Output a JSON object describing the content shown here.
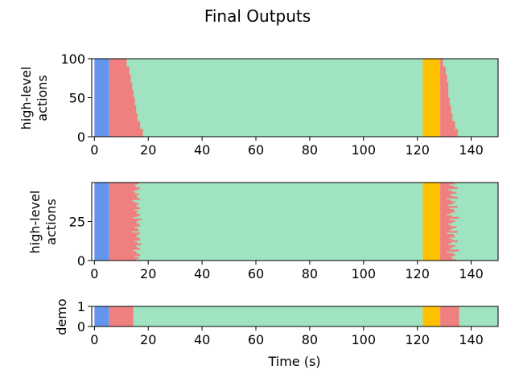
{
  "figure": {
    "title": "Final Outputs"
  },
  "colors": {
    "phase_a": "#6495ED",
    "phase_b": "#F08080",
    "phase_c": "#A0E3C1",
    "phase_d": "#FFC000"
  },
  "chart_data": [
    {
      "type": "heatmap",
      "ylabel_lines": [
        "high-level",
        "actions"
      ],
      "xlim": [
        -1,
        150
      ],
      "ylim": [
        0,
        100
      ],
      "xticks": [
        0,
        20,
        40,
        60,
        80,
        100,
        120,
        140
      ],
      "yticks": [
        0,
        50,
        100
      ],
      "segments": [
        {
          "phase": "phase_a",
          "x0": 0,
          "x1": 5.5
        },
        {
          "phase": "phase_c",
          "x0": 5.5,
          "x1": 122
        },
        {
          "phase": "phase_d",
          "x0": 122,
          "x1": 128.5
        },
        {
          "phase": "phase_c",
          "x0": 128.5,
          "x1": 150
        }
      ],
      "rows": [
        {
          "phase": "phase_b",
          "y0": 90,
          "y1": 100,
          "x0": 5.5,
          "x1": 12
        },
        {
          "phase": "phase_b",
          "y0": 80,
          "y1": 90,
          "x0": 5.5,
          "x1": 13
        },
        {
          "phase": "phase_b",
          "y0": 70,
          "y1": 80,
          "x0": 5.5,
          "x1": 13.5
        },
        {
          "phase": "phase_b",
          "y0": 60,
          "y1": 70,
          "x0": 5.5,
          "x1": 14
        },
        {
          "phase": "phase_b",
          "y0": 50,
          "y1": 60,
          "x0": 5.5,
          "x1": 14.5
        },
        {
          "phase": "phase_b",
          "y0": 40,
          "y1": 50,
          "x0": 5.5,
          "x1": 15
        },
        {
          "phase": "phase_b",
          "y0": 30,
          "y1": 40,
          "x0": 5.5,
          "x1": 15.5
        },
        {
          "phase": "phase_b",
          "y0": 20,
          "y1": 30,
          "x0": 5.5,
          "x1": 16
        },
        {
          "phase": "phase_b",
          "y0": 10,
          "y1": 20,
          "x0": 5.5,
          "x1": 17
        },
        {
          "phase": "phase_b",
          "y0": 0,
          "y1": 10,
          "x0": 5.5,
          "x1": 18
        },
        {
          "phase": "phase_b",
          "y0": 90,
          "y1": 100,
          "x0": 128.5,
          "x1": 129.5
        },
        {
          "phase": "phase_b",
          "y0": 80,
          "y1": 90,
          "x0": 128.5,
          "x1": 130.5
        },
        {
          "phase": "phase_b",
          "y0": 70,
          "y1": 80,
          "x0": 128.5,
          "x1": 131
        },
        {
          "phase": "phase_b",
          "y0": 60,
          "y1": 70,
          "x0": 128.5,
          "x1": 131.5
        },
        {
          "phase": "phase_b",
          "y0": 50,
          "y1": 60,
          "x0": 128.5,
          "x1": 131.5
        },
        {
          "phase": "phase_b",
          "y0": 40,
          "y1": 50,
          "x0": 128.5,
          "x1": 132
        },
        {
          "phase": "phase_b",
          "y0": 30,
          "y1": 40,
          "x0": 128.5,
          "x1": 132.5
        },
        {
          "phase": "phase_b",
          "y0": 20,
          "y1": 30,
          "x0": 128.5,
          "x1": 133
        },
        {
          "phase": "phase_b",
          "y0": 10,
          "y1": 20,
          "x0": 128.5,
          "x1": 134
        },
        {
          "phase": "phase_b",
          "y0": 0,
          "y1": 10,
          "x0": 128.5,
          "x1": 135
        }
      ]
    },
    {
      "type": "heatmap",
      "ylabel_lines": [
        "high-level",
        "actions"
      ],
      "xlim": [
        -1,
        150
      ],
      "ylim": [
        0,
        50
      ],
      "xticks": [
        0,
        20,
        40,
        60,
        80,
        100,
        120,
        140
      ],
      "yticks": [
        0,
        25
      ],
      "segments": [
        {
          "phase": "phase_a",
          "x0": 0,
          "x1": 5.5
        },
        {
          "phase": "phase_c",
          "x0": 5.5,
          "x1": 122
        },
        {
          "phase": "phase_d",
          "x0": 122,
          "x1": 128.5
        },
        {
          "phase": "phase_c",
          "x0": 128.5,
          "x1": 150
        }
      ],
      "red_left_x0": 5.5,
      "red_left_ends": [
        16.5,
        15,
        15.5,
        17,
        16,
        14.5,
        15,
        16.5,
        15.5,
        16,
        17,
        14,
        15,
        16.5,
        15.5,
        16,
        17,
        15,
        16,
        15.5,
        17,
        16,
        14.5,
        17.5,
        16,
        15.5,
        16.5,
        17,
        15,
        16,
        16.5,
        14,
        17,
        16,
        15.5,
        16.5,
        17,
        15,
        16,
        17.5,
        15.5,
        16,
        17,
        14.5,
        15.5,
        16,
        17,
        15,
        16.5,
        15.5
      ],
      "red_right_x0": 128.5,
      "red_right_ends": [
        134,
        132,
        133.5,
        135,
        131.5,
        133,
        134.5,
        132,
        133,
        135,
        131,
        132.5,
        134,
        133,
        131.5,
        135,
        132,
        133.5,
        134,
        132.5,
        131,
        133,
        135.5,
        132,
        134,
        133,
        131.5,
        132.5,
        134.5,
        133,
        132,
        135,
        131,
        133.5,
        134,
        132,
        133,
        135,
        132.5,
        131.5,
        134,
        133,
        132,
        135.5,
        131,
        133.5,
        134,
        132.5,
        133,
        134.5
      ]
    },
    {
      "type": "heatmap",
      "ylabel_lines": [
        "demo"
      ],
      "xlabel": "Time (s)",
      "xlim": [
        -1,
        150
      ],
      "ylim": [
        0,
        1
      ],
      "xticks": [
        0,
        20,
        40,
        60,
        80,
        100,
        120,
        140
      ],
      "yticks": [
        0,
        1
      ],
      "segments": [
        {
          "phase": "phase_a",
          "x0": 0,
          "x1": 5.5
        },
        {
          "phase": "phase_b",
          "x0": 5.5,
          "x1": 14.5
        },
        {
          "phase": "phase_c",
          "x0": 14.5,
          "x1": 122
        },
        {
          "phase": "phase_d",
          "x0": 122,
          "x1": 128.5
        },
        {
          "phase": "phase_b",
          "x0": 128.5,
          "x1": 135.5
        },
        {
          "phase": "phase_c",
          "x0": 135.5,
          "x1": 150
        }
      ]
    }
  ]
}
